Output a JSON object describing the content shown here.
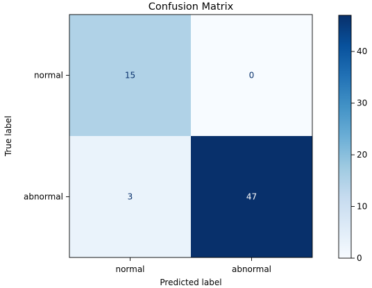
{
  "chart_data": {
    "type": "heatmap",
    "title": "Confusion Matrix",
    "xlabel": "Predicted label",
    "ylabel": "True label",
    "x_categories": [
      "normal",
      "abnormal"
    ],
    "y_categories": [
      "normal",
      "abnormal"
    ],
    "values": [
      [
        15,
        0
      ],
      [
        3,
        47
      ]
    ],
    "colormap": "Blues",
    "color_range": [
      0,
      47
    ],
    "colorbar_ticks": [
      "0",
      "10",
      "20",
      "30",
      "40"
    ],
    "colorbar_tick_values": [
      0,
      10,
      20,
      30,
      40
    ],
    "colors": {
      "light_text": "#ffffff",
      "dark_text": "#08306b"
    }
  }
}
